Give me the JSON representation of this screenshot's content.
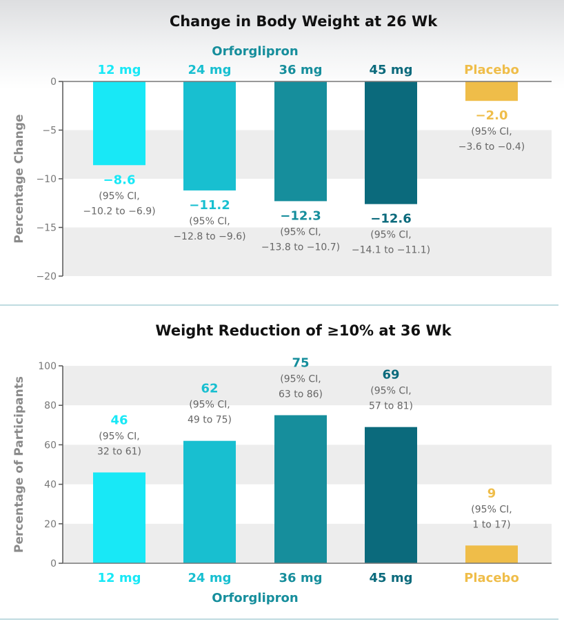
{
  "colors": {
    "dose_12": "#18e8f6",
    "dose_24": "#18bfd0",
    "dose_36": "#168e9c",
    "dose_45": "#0b6a7c",
    "placebo": "#efbd49",
    "axis_text": "#777777",
    "ci_text": "#666666",
    "band": "#ededed"
  },
  "chart_data": [
    {
      "type": "bar",
      "title": "Change in Body Weight at 26 Wk",
      "group_label": "Orforglipron",
      "ylabel": "Percentage Change",
      "xlabel": "",
      "ylim": [
        -20,
        0
      ],
      "yticks": [
        0,
        -5,
        -10,
        -15,
        -20
      ],
      "ytick_labels": [
        "0",
        "−5",
        "−10",
        "−15",
        "−20"
      ],
      "categories": [
        "12 mg",
        "24 mg",
        "36 mg",
        "45 mg",
        "Placebo"
      ],
      "series_colors": [
        "dose_12",
        "dose_24",
        "dose_36",
        "dose_45",
        "placebo"
      ],
      "values": [
        -8.6,
        -11.2,
        -12.3,
        -12.6,
        -2.0
      ],
      "value_labels": [
        "−8.6",
        "−11.2",
        "−12.3",
        "−12.6",
        "−2.0"
      ],
      "ci_prefix": "(95% CI,",
      "ci_labels": [
        "−10.2 to −6.9)",
        "−12.8 to −9.6)",
        "−13.8 to −10.7)",
        "−14.1 to −11.1)",
        "−3.6 to −0.4)"
      ],
      "grid": "alternating bands"
    },
    {
      "type": "bar",
      "title": "Weight Reduction of ≥10% at 36 Wk",
      "group_label": "Orforglipron",
      "ylabel": "Percentage of Participants",
      "xlabel": "",
      "ylim": [
        0,
        100
      ],
      "yticks": [
        0,
        20,
        40,
        60,
        80,
        100
      ],
      "ytick_labels": [
        "0",
        "20",
        "40",
        "60",
        "80",
        "100"
      ],
      "categories": [
        "12 mg",
        "24 mg",
        "36 mg",
        "45 mg",
        "Placebo"
      ],
      "series_colors": [
        "dose_12",
        "dose_24",
        "dose_36",
        "dose_45",
        "placebo"
      ],
      "values": [
        46,
        62,
        75,
        69,
        9
      ],
      "value_labels": [
        "46",
        "62",
        "75",
        "69",
        "9"
      ],
      "ci_prefix": "(95% CI,",
      "ci_labels": [
        "32 to 61)",
        "49 to 75)",
        "63 to 86)",
        "57 to 81)",
        "1 to 17)"
      ],
      "grid": "alternating bands"
    }
  ]
}
